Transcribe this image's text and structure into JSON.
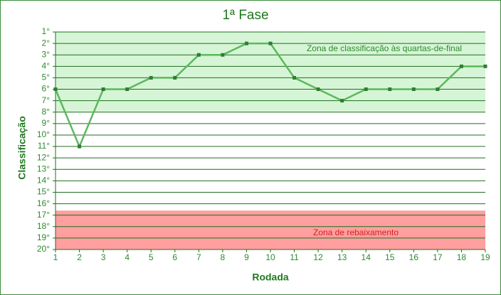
{
  "chart_data": {
    "type": "line",
    "title": "1ª Fase",
    "x_label": "Rodada",
    "y_label": "Classificação",
    "x": [
      1,
      2,
      3,
      4,
      5,
      6,
      7,
      8,
      9,
      10,
      11,
      12,
      13,
      14,
      15,
      16,
      17,
      18,
      19
    ],
    "values": [
      6,
      11,
      6,
      6,
      5,
      5,
      3,
      3,
      2,
      2,
      5,
      6,
      7,
      6,
      6,
      6,
      6,
      4,
      4
    ],
    "color": "#5cb85c",
    "marker_color": "#2e7d32",
    "xlim": [
      1,
      19
    ],
    "xticks": [
      1,
      2,
      3,
      4,
      5,
      6,
      7,
      8,
      9,
      10,
      11,
      12,
      13,
      14,
      15,
      16,
      17,
      18,
      19
    ],
    "ylim": [
      20,
      1
    ],
    "yticks": [
      {
        "value": 1,
        "label": "1°"
      },
      {
        "value": 2,
        "label": "2°"
      },
      {
        "value": 3,
        "label": "3°"
      },
      {
        "value": 4,
        "label": "4°"
      },
      {
        "value": 5,
        "label": "5°"
      },
      {
        "value": 6,
        "label": "6°"
      },
      {
        "value": 7,
        "label": "7°"
      },
      {
        "value": 8,
        "label": "8°"
      },
      {
        "value": 9,
        "label": "9°"
      },
      {
        "value": 10,
        "label": "10°"
      },
      {
        "value": 11,
        "label": "11°"
      },
      {
        "value": 12,
        "label": "12°"
      },
      {
        "value": 13,
        "label": "13°"
      },
      {
        "value": 14,
        "label": "14°"
      },
      {
        "value": 15,
        "label": "15°"
      },
      {
        "value": 16,
        "label": "16°"
      },
      {
        "value": 17,
        "label": "17°"
      },
      {
        "value": 18,
        "label": "18°"
      },
      {
        "value": 19,
        "label": "19°"
      },
      {
        "value": 20,
        "label": "20°"
      }
    ],
    "grid": true,
    "bands": [
      {
        "label": "Zona de classificação às quartas-de-final",
        "from": 1,
        "to": 8,
        "color": "#d6f5d6",
        "text_color": "#2e8b2e"
      },
      {
        "label": "Zona de rebaixamento",
        "from": 16.6,
        "to": 20,
        "color": "#ff9f9f",
        "text_color": "#d42020"
      }
    ]
  }
}
